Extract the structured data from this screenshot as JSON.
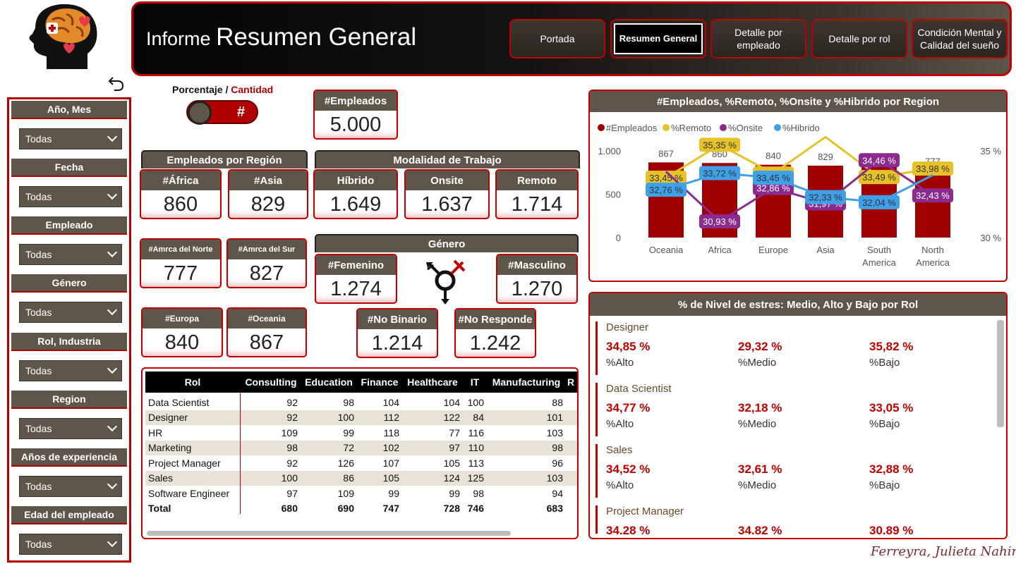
{
  "header": {
    "title_prefix": "Informe",
    "title_main": "Resumen General",
    "nav": [
      {
        "label": "Portada"
      },
      {
        "label": "Resumen General"
      },
      {
        "label": "Detalle por empleado"
      },
      {
        "label": "Detalle por rol"
      },
      {
        "label": "Condición Mental y Calidad del sueño"
      }
    ]
  },
  "slicers": [
    {
      "label": "Año, Mes",
      "value": "Todas"
    },
    {
      "label": "Fecha",
      "value": "Todas"
    },
    {
      "label": "Empleado",
      "value": "Todas"
    },
    {
      "label": "Género",
      "value": "Todas"
    },
    {
      "label": "Rol, Industria",
      "value": "Todas"
    },
    {
      "label": "Region",
      "value": "Todas"
    },
    {
      "label": "Años de experiencia",
      "value": "Todas"
    },
    {
      "label": "Edad del empleado",
      "value": "Todas"
    }
  ],
  "toggle": {
    "label_a": "Porcentaje",
    "sep": " / ",
    "label_b": "Cantidad",
    "symbol": "#"
  },
  "kpi_total": {
    "label": "#Empleados",
    "value": "5.000"
  },
  "region_section": "Empleados por Región",
  "modalidad_section": "Modalidad de Trabajo",
  "genero_section": "Género",
  "regions": [
    {
      "label": "#África",
      "value": "860"
    },
    {
      "label": "#Asia",
      "value": "829"
    },
    {
      "label": "#Amrca del Norte",
      "value": "777"
    },
    {
      "label": "#Amrca del Sur",
      "value": "827"
    },
    {
      "label": "#Europa",
      "value": "840"
    },
    {
      "label": "#Oceania",
      "value": "867"
    }
  ],
  "modalidad": [
    {
      "label": "Híbrido",
      "value": "1.649"
    },
    {
      "label": "Onsite",
      "value": "1.637"
    },
    {
      "label": "Remoto",
      "value": "1.714"
    }
  ],
  "genero": [
    {
      "label": "#Femenino",
      "value": "1.274"
    },
    {
      "label": "#Masculino",
      "value": "1.270"
    },
    {
      "label": "#No Binario",
      "value": "1.214"
    },
    {
      "label": "#No Responde",
      "value": "1.242"
    }
  ],
  "matrix": {
    "columns": [
      "Rol",
      "Consulting",
      "Education",
      "Finance",
      "Healthcare",
      "IT",
      "Manufacturing",
      "R"
    ],
    "rows": [
      {
        "rol": "Data Scientist",
        "vals": [
          "92",
          "98",
          "104",
          "104",
          "100",
          "88"
        ]
      },
      {
        "rol": "Designer",
        "vals": [
          "92",
          "100",
          "112",
          "122",
          "84",
          "101"
        ]
      },
      {
        "rol": "HR",
        "vals": [
          "109",
          "99",
          "118",
          "77",
          "116",
          "103"
        ]
      },
      {
        "rol": "Marketing",
        "vals": [
          "98",
          "72",
          "102",
          "97",
          "110",
          "98"
        ]
      },
      {
        "rol": "Project Manager",
        "vals": [
          "92",
          "126",
          "107",
          "105",
          "113",
          "96"
        ]
      },
      {
        "rol": "Sales",
        "vals": [
          "100",
          "86",
          "105",
          "124",
          "125",
          "103"
        ]
      },
      {
        "rol": "Software Engineer",
        "vals": [
          "97",
          "109",
          "99",
          "99",
          "98",
          "94"
        ]
      }
    ],
    "total": {
      "rol": "Total",
      "vals": [
        "680",
        "690",
        "747",
        "728",
        "746",
        "683"
      ]
    }
  },
  "chart_data": {
    "type": "bar",
    "title": "#Empleados, %Remoto, %Onsite y %Hibrido por Region",
    "categories": [
      "Oceania",
      "Africa",
      "Europe",
      "Asia",
      "South America",
      "North America"
    ],
    "y_left_ticks": [
      "1.000",
      "500",
      "0"
    ],
    "y_right_ticks": [
      "35 %",
      "30 %"
    ],
    "ylim": [
      0,
      1000
    ],
    "y2lim": [
      30,
      35
    ],
    "legend_position": "top-left",
    "series": [
      {
        "name": "#Empleados",
        "type": "bar",
        "color": "#a00000",
        "values": [
          867,
          860,
          840,
          829,
          827,
          777
        ],
        "labels": [
          "867",
          "860",
          "840",
          "829",
          "827",
          "777"
        ]
      },
      {
        "name": "%Remoto",
        "type": "line",
        "color": "#e6c229",
        "values": [
          33.45,
          35.35,
          33.69,
          35.8,
          33.49,
          33.98
        ],
        "labels": [
          "33,45 %",
          "35,35 %",
          "33,69 %",
          "",
          "33,49 %",
          "33,98 %"
        ]
      },
      {
        "name": "%Onsite",
        "type": "line",
        "color": "#8b2a8f",
        "values": [
          33.8,
          30.93,
          32.86,
          31.97,
          34.46,
          32.43
        ],
        "labels": [
          "",
          "30,93 %",
          "32,86 %",
          "31,97 %",
          "34,46 %",
          "32,43 %"
        ]
      },
      {
        "name": "%Hibrido",
        "type": "line",
        "color": "#3ea1e8",
        "values": [
          32.76,
          33.72,
          33.45,
          32.33,
          32.04,
          33.6
        ],
        "labels": [
          "32,76 %",
          "33,72 %",
          "33,45 %",
          "32,33 %",
          "32,04 %",
          ""
        ]
      }
    ]
  },
  "stress": {
    "title": "% de Nivel de estres: Medio, Alto y Bajo por Rol",
    "items": [
      {
        "role": "Designer",
        "alto": "34,85 %",
        "medio": "29,32 %",
        "bajo": "35,82 %"
      },
      {
        "role": "Data Scientist",
        "alto": "34,77 %",
        "medio": "32,18 %",
        "bajo": "33,05 %"
      },
      {
        "role": "Sales",
        "alto": "34,52 %",
        "medio": "32,61 %",
        "bajo": "32,88 %"
      },
      {
        "role": "Project Manager",
        "alto": "34.28 %",
        "medio": "34.82 %",
        "bajo": "30.89 %"
      }
    ],
    "label_alto": "%Alto",
    "label_medio": "%Medio",
    "label_bajo": "%Bajo"
  },
  "signature": "Ferreyra, Julieta Nahir"
}
